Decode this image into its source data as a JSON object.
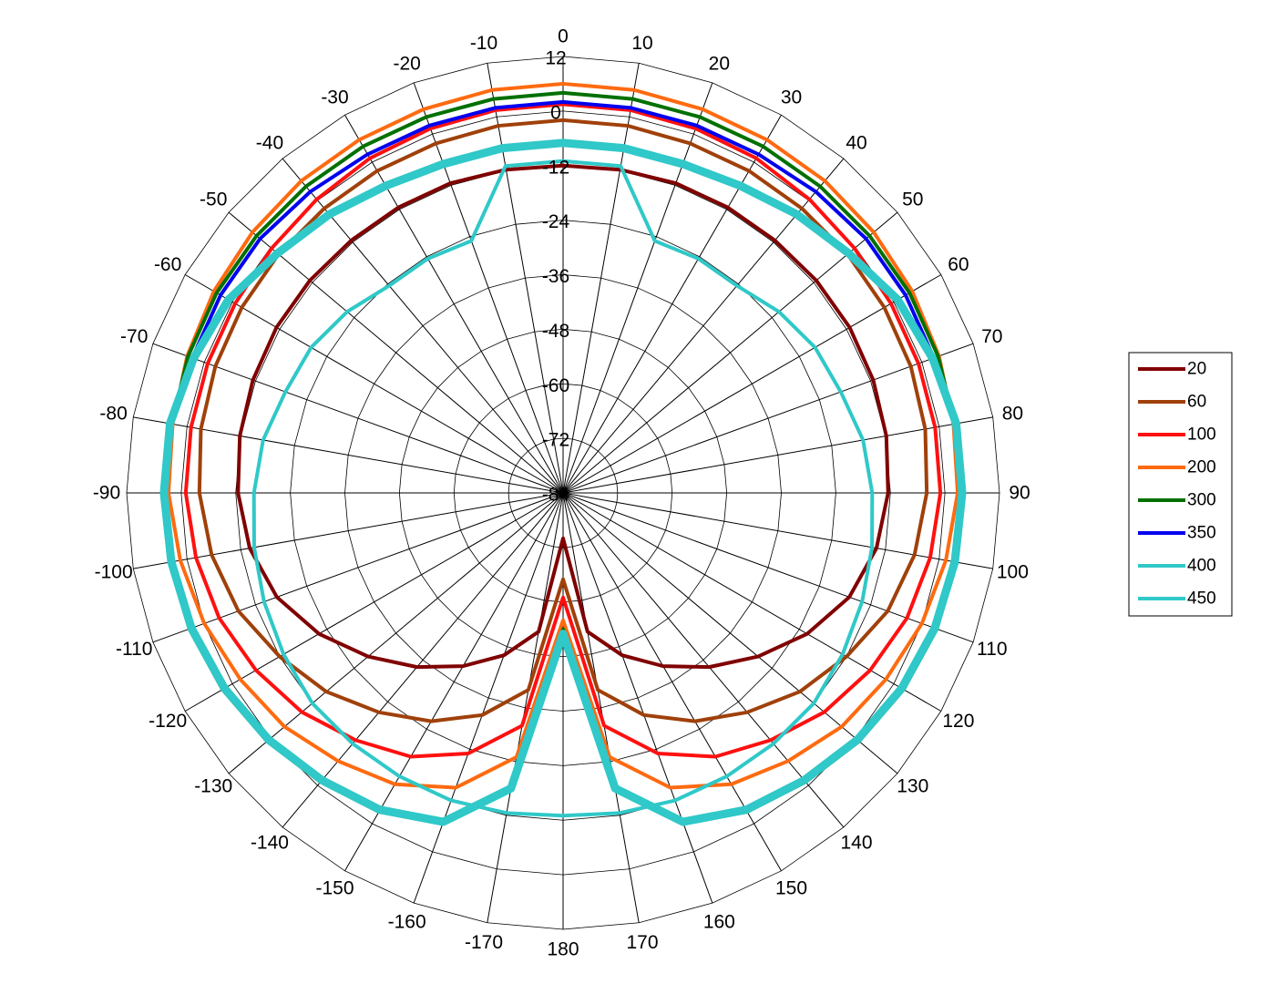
{
  "chart_data": {
    "type": "polar-line",
    "title": "",
    "angle_ticks": [
      0,
      10,
      20,
      30,
      40,
      50,
      60,
      70,
      80,
      90,
      100,
      110,
      120,
      130,
      140,
      150,
      160,
      170,
      180,
      -170,
      -160,
      -150,
      -140,
      -130,
      -120,
      -110,
      -100,
      -90,
      -80,
      -70,
      -60,
      -50,
      -40,
      -30,
      -20,
      -10
    ],
    "radial_ticks": [
      12,
      0,
      -12,
      -24,
      -36,
      -48,
      -60,
      -72,
      -84
    ],
    "radial_range": [
      -84,
      12
    ],
    "legend_position": "right",
    "angles": [
      0,
      10,
      20,
      30,
      40,
      50,
      60,
      70,
      80,
      90,
      100,
      110,
      120,
      130,
      140,
      150,
      160,
      170,
      180
    ],
    "series": [
      {
        "name": "20",
        "color": "#800000",
        "width": 4,
        "values": [
          -12,
          -11.8,
          -11.5,
          -11.5,
          -11.5,
          -11.3,
          -11.2,
          -11.4,
          -11.8,
          -12.5,
          -14,
          -17,
          -22,
          -28,
          -34,
          -40,
          -46,
          -53,
          -74
        ]
      },
      {
        "name": "60",
        "color": "#A0400A",
        "width": 4,
        "values": [
          -2,
          -2,
          -2.2,
          -2.2,
          -2.3,
          -2.3,
          -2.4,
          -2.6,
          -3.1,
          -4,
          -5.5,
          -8,
          -12,
          -16,
          -21,
          -26,
          -32,
          -40,
          -65
        ]
      },
      {
        "name": "100",
        "color": "#FF1010",
        "width": 4,
        "values": [
          1.5,
          1.5,
          1.3,
          1,
          0.3,
          -0.3,
          -0.7,
          -0.8,
          -0.9,
          -1,
          -2,
          -3.5,
          -6,
          -9,
          -13,
          -17,
          -23,
          -32,
          -61
        ]
      },
      {
        "name": "200",
        "color": "#FF6A10",
        "width": 4,
        "values": [
          6,
          6,
          5.8,
          5.7,
          5.6,
          5.2,
          4.7,
          4,
          3.2,
          2.8,
          1.5,
          0,
          -2,
          -4,
          -7,
          -10,
          -15,
          -25,
          -56
        ]
      },
      {
        "name": "300",
        "color": "#007000",
        "width": 4,
        "values": [
          4,
          4,
          4,
          4,
          4,
          4,
          4,
          3.8,
          3.4,
          3.8,
          3.7,
          3.5,
          2.5,
          1,
          -1,
          -3,
          -7,
          -18,
          -54
        ]
      },
      {
        "name": "350",
        "color": "#0000F0",
        "width": 4,
        "values": [
          2,
          2,
          2,
          2,
          2.5,
          3,
          3,
          2.8,
          3.5,
          3.8,
          3.6,
          3.2,
          2,
          0.5,
          -1.5,
          -3.5,
          -7,
          -18,
          -53
        ]
      },
      {
        "name": "400",
        "color": "#30C8C8",
        "width": 4,
        "values": [
          -11,
          -11,
          -25,
          -24.5,
          -24.5,
          -22,
          -20,
          -19,
          -17,
          -16,
          -15,
          -14,
          -13,
          -12,
          -12,
          -12,
          -12,
          -12.5,
          -13
        ]
      },
      {
        "name": "450",
        "color": "#30C8C8",
        "width": 9,
        "values": [
          -7,
          -7,
          -7,
          -6,
          -4,
          -2,
          1,
          2.5,
          3.8,
          3.8,
          3.5,
          3,
          2,
          0.5,
          -1.5,
          -3.5,
          -7,
          -18,
          -53
        ]
      }
    ]
  }
}
